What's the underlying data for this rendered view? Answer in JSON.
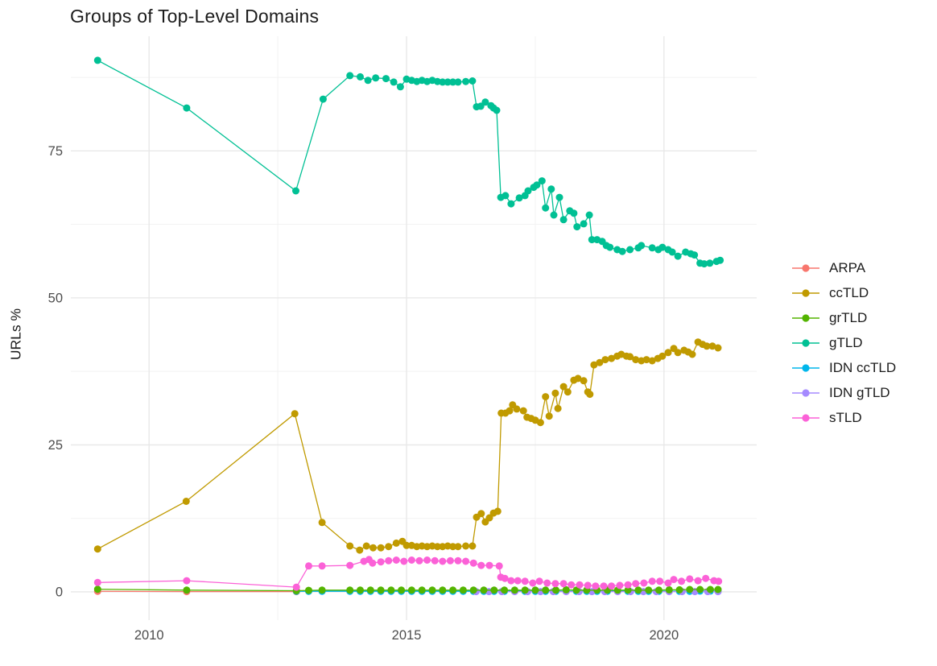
{
  "chart_data": {
    "type": "line",
    "title": "Groups of Top-Level Domains",
    "xlabel": "",
    "ylabel": "URLs %",
    "xlim": [
      2008.48,
      2021.8
    ],
    "ylim": [
      -4.8,
      94.5
    ],
    "grid": true,
    "legend_position": "right",
    "x_ticks": [
      {
        "value": 2010,
        "label": "2010"
      },
      {
        "value": 2015,
        "label": "2015"
      },
      {
        "value": 2020,
        "label": "2020"
      }
    ],
    "x_minor": [
      2012.5,
      2017.5
    ],
    "y_ticks": [
      {
        "value": 0,
        "label": "0"
      },
      {
        "value": 25,
        "label": "25"
      },
      {
        "value": 50,
        "label": "50"
      },
      {
        "value": 75,
        "label": "75"
      }
    ],
    "y_minor": [
      12.5,
      37.5,
      62.5,
      87.5
    ],
    "colors": {
      "grid_major": "#e7e7e7",
      "grid_minor": "#f2f2f2",
      "axis_text": "#4d4d4d",
      "title_text": "#1c1c1c"
    },
    "series": [
      {
        "name": "ARPA",
        "color": "#F8766D",
        "x": [
          2009.0,
          2010.73,
          2012.86
        ],
        "y": [
          0.1,
          0.05,
          0.05
        ]
      },
      {
        "name": "ccTLD",
        "color": "#C09A00",
        "x": [
          2009.0,
          2010.72,
          2012.83,
          2013.36,
          2013.9,
          2014.09,
          2014.22,
          2014.35,
          2014.5,
          2014.65,
          2014.8,
          2014.92,
          2015.0,
          2015.1,
          2015.2,
          2015.3,
          2015.4,
          2015.5,
          2015.6,
          2015.7,
          2015.8,
          2015.9,
          2016.0,
          2016.15,
          2016.28,
          2016.36,
          2016.45,
          2016.53,
          2016.61,
          2016.69,
          2016.77,
          2016.84,
          2016.92,
          2017.0,
          2017.06,
          2017.14,
          2017.27,
          2017.34,
          2017.42,
          2017.5,
          2017.6,
          2017.7,
          2017.77,
          2017.89,
          2017.94,
          2018.05,
          2018.13,
          2018.25,
          2018.33,
          2018.44,
          2018.52,
          2018.56,
          2018.64,
          2018.75,
          2018.86,
          2018.98,
          2019.09,
          2019.17,
          2019.27,
          2019.34,
          2019.45,
          2019.56,
          2019.66,
          2019.77,
          2019.88,
          2019.97,
          2020.08,
          2020.19,
          2020.27,
          2020.39,
          2020.47,
          2020.55,
          2020.66,
          2020.75,
          2020.83,
          2020.94,
          2021.05
        ],
        "y": [
          7.3,
          15.4,
          30.3,
          11.8,
          7.8,
          7.1,
          7.8,
          7.5,
          7.5,
          7.7,
          8.3,
          8.6,
          7.9,
          7.9,
          7.7,
          7.8,
          7.7,
          7.8,
          7.7,
          7.7,
          7.8,
          7.7,
          7.7,
          7.8,
          7.8,
          12.7,
          13.3,
          11.9,
          12.6,
          13.4,
          13.7,
          30.4,
          30.4,
          30.8,
          31.8,
          31.1,
          30.8,
          29.7,
          29.5,
          29.2,
          28.8,
          33.2,
          29.9,
          33.8,
          31.2,
          34.9,
          34.0,
          36.0,
          36.3,
          35.9,
          34.0,
          33.6,
          38.6,
          39.0,
          39.5,
          39.7,
          40.1,
          40.4,
          40.1,
          40.0,
          39.5,
          39.3,
          39.5,
          39.3,
          39.7,
          40.1,
          40.7,
          41.4,
          40.7,
          41.1,
          40.8,
          40.4,
          42.5,
          42.1,
          41.8,
          41.8,
          41.5
        ]
      },
      {
        "name": "grTLD",
        "color": "#53B400",
        "x": [
          2009.0,
          2010.73,
          2012.86,
          2013.1,
          2013.36,
          2013.9,
          2014.1,
          2014.3,
          2014.5,
          2014.7,
          2014.9,
          2015.1,
          2015.3,
          2015.5,
          2015.7,
          2015.9,
          2016.1,
          2016.3,
          2016.5,
          2016.7,
          2016.9,
          2017.1,
          2017.3,
          2017.5,
          2017.7,
          2017.9,
          2018.1,
          2018.3,
          2018.5,
          2018.7,
          2018.9,
          2019.1,
          2019.3,
          2019.5,
          2019.7,
          2019.9,
          2020.1,
          2020.3,
          2020.5,
          2020.7,
          2020.9,
          2021.05
        ],
        "y": [
          0.45,
          0.3,
          0.2,
          0.25,
          0.3,
          0.3,
          0.3,
          0.3,
          0.3,
          0.3,
          0.3,
          0.3,
          0.3,
          0.3,
          0.3,
          0.3,
          0.3,
          0.3,
          0.3,
          0.3,
          0.3,
          0.3,
          0.3,
          0.3,
          0.3,
          0.3,
          0.35,
          0.3,
          0.3,
          0.3,
          0.3,
          0.3,
          0.3,
          0.3,
          0.3,
          0.3,
          0.35,
          0.35,
          0.4,
          0.4,
          0.4,
          0.4
        ]
      },
      {
        "name": "gTLD",
        "color": "#00C094",
        "x": [
          2009.0,
          2010.73,
          2012.85,
          2013.38,
          2013.9,
          2014.1,
          2014.25,
          2014.4,
          2014.6,
          2014.75,
          2014.88,
          2015.0,
          2015.1,
          2015.2,
          2015.3,
          2015.4,
          2015.5,
          2015.6,
          2015.7,
          2015.8,
          2015.9,
          2016.0,
          2016.15,
          2016.28,
          2016.36,
          2016.44,
          2016.53,
          2016.64,
          2016.69,
          2016.75,
          2016.83,
          2016.92,
          2017.03,
          2017.19,
          2017.3,
          2017.36,
          2017.47,
          2017.53,
          2017.63,
          2017.7,
          2017.81,
          2017.86,
          2017.97,
          2018.05,
          2018.17,
          2018.25,
          2018.31,
          2018.44,
          2018.55,
          2018.6,
          2018.7,
          2018.8,
          2018.88,
          2018.95,
          2019.09,
          2019.19,
          2019.34,
          2019.5,
          2019.56,
          2019.77,
          2019.89,
          2019.97,
          2020.08,
          2020.16,
          2020.27,
          2020.42,
          2020.52,
          2020.59,
          2020.7,
          2020.78,
          2020.89,
          2021.02,
          2021.09
        ],
        "y": [
          90.4,
          82.3,
          68.2,
          83.8,
          87.8,
          87.6,
          87.0,
          87.4,
          87.3,
          86.7,
          85.9,
          87.2,
          87.0,
          86.8,
          87.0,
          86.8,
          87.0,
          86.8,
          86.7,
          86.7,
          86.7,
          86.7,
          86.8,
          86.9,
          82.5,
          82.6,
          83.3,
          82.7,
          82.3,
          81.9,
          67.1,
          67.4,
          66.0,
          67.0,
          67.4,
          68.2,
          68.8,
          69.2,
          69.9,
          65.3,
          68.5,
          64.1,
          67.1,
          63.3,
          64.8,
          64.4,
          62.1,
          62.6,
          64.1,
          59.9,
          59.9,
          59.6,
          58.9,
          58.6,
          58.2,
          57.9,
          58.2,
          58.5,
          58.9,
          58.5,
          58.2,
          58.6,
          58.2,
          57.8,
          57.1,
          57.8,
          57.5,
          57.3,
          55.9,
          55.8,
          55.9,
          56.2,
          56.4
        ]
      },
      {
        "name": "IDN ccTLD",
        "color": "#00B6EB",
        "x": [
          2012.86,
          2013.1,
          2013.36,
          2013.9,
          2014.1,
          2014.3,
          2014.5,
          2014.7,
          2014.9,
          2015.1,
          2015.3,
          2015.5,
          2015.7,
          2015.9,
          2016.1,
          2016.3,
          2016.5,
          2016.7,
          2016.9,
          2017.1,
          2017.3,
          2017.5,
          2017.7,
          2017.9,
          2018.1,
          2018.3,
          2018.5,
          2018.7,
          2018.9,
          2019.1,
          2019.3,
          2019.5,
          2019.7,
          2019.9,
          2020.1,
          2020.3,
          2020.5,
          2020.7,
          2020.9,
          2021.05
        ],
        "y": [
          0.1,
          0.1,
          0.1,
          0.1,
          0.1,
          0.1,
          0.1,
          0.1,
          0.1,
          0.1,
          0.1,
          0.1,
          0.1,
          0.1,
          0.1,
          0.1,
          0.1,
          0.1,
          0.1,
          0.1,
          0.1,
          0.1,
          0.1,
          0.1,
          0.1,
          0.1,
          0.1,
          0.1,
          0.1,
          0.1,
          0.1,
          0.1,
          0.1,
          0.1,
          0.1,
          0.1,
          0.1,
          0.15,
          0.15,
          0.15
        ]
      },
      {
        "name": "IDN gTLD",
        "color": "#A58AFF",
        "x": [
          2016.35,
          2016.6,
          2016.85,
          2017.1,
          2017.35,
          2017.6,
          2017.85,
          2018.1,
          2018.35,
          2018.6,
          2018.85,
          2019.1,
          2019.35,
          2019.6,
          2019.85,
          2020.1,
          2020.35,
          2020.6,
          2020.85,
          2021.05
        ],
        "y": [
          0.05,
          0.05,
          0.05,
          0.05,
          0.05,
          0.05,
          0.05,
          0.05,
          0.05,
          0.05,
          0.05,
          0.05,
          0.05,
          0.05,
          0.05,
          0.05,
          0.05,
          0.05,
          0.05,
          0.05
        ]
      },
      {
        "name": "sTLD",
        "color": "#FB61D7",
        "x": [
          2009.0,
          2010.73,
          2012.86,
          2013.1,
          2013.36,
          2013.9,
          2014.17,
          2014.27,
          2014.34,
          2014.5,
          2014.65,
          2014.8,
          2014.95,
          2015.1,
          2015.25,
          2015.4,
          2015.55,
          2015.7,
          2015.85,
          2016.0,
          2016.15,
          2016.3,
          2016.45,
          2016.61,
          2016.8,
          2016.83,
          2016.91,
          2017.03,
          2017.16,
          2017.3,
          2017.45,
          2017.58,
          2017.73,
          2017.89,
          2018.05,
          2018.2,
          2018.36,
          2018.52,
          2018.67,
          2018.83,
          2018.98,
          2019.14,
          2019.3,
          2019.45,
          2019.61,
          2019.77,
          2019.92,
          2020.08,
          2020.19,
          2020.34,
          2020.5,
          2020.66,
          2020.81,
          2020.97,
          2021.06
        ],
        "y": [
          1.6,
          1.9,
          0.8,
          4.4,
          4.4,
          4.5,
          5.2,
          5.5,
          4.9,
          5.1,
          5.3,
          5.4,
          5.2,
          5.4,
          5.3,
          5.4,
          5.3,
          5.2,
          5.3,
          5.3,
          5.2,
          4.9,
          4.5,
          4.5,
          4.4,
          2.5,
          2.3,
          1.9,
          1.9,
          1.8,
          1.5,
          1.8,
          1.5,
          1.4,
          1.4,
          1.2,
          1.2,
          1.1,
          1.0,
          1.0,
          1.0,
          1.1,
          1.2,
          1.4,
          1.5,
          1.8,
          1.8,
          1.5,
          2.1,
          1.8,
          2.2,
          1.9,
          2.3,
          1.9,
          1.8
        ]
      }
    ]
  }
}
